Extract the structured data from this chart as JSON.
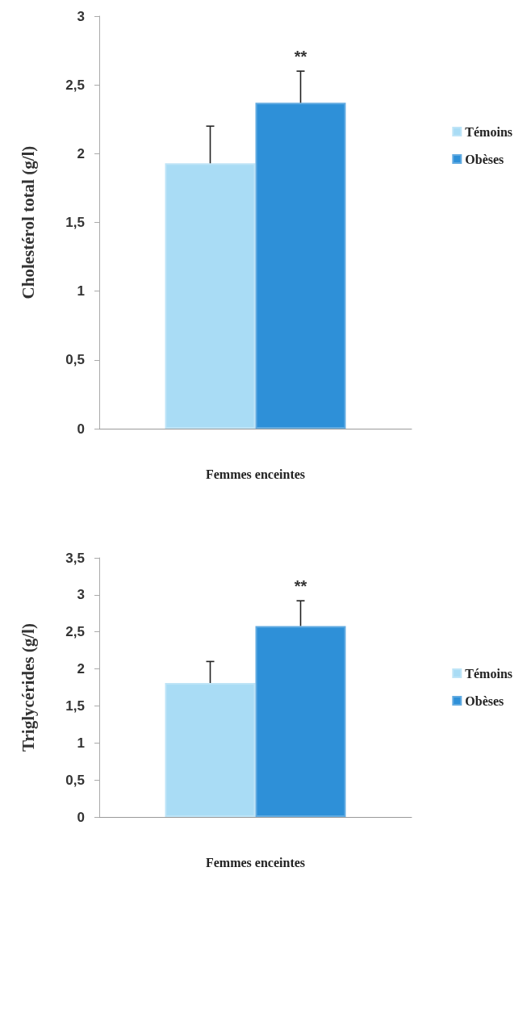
{
  "chart_data": [
    {
      "type": "bar",
      "ylabel": "Cholestérol total (g/l)",
      "xlabel": "Femmes enceintes",
      "categories": [
        null
      ],
      "series": [
        {
          "name": "Témoins",
          "color": "#a9dcf5",
          "values": [
            1.93
          ],
          "errors": [
            [
              1.93,
              2.2
            ]
          ]
        },
        {
          "name": "Obèses",
          "color": "#2e90d8",
          "values": [
            2.37
          ],
          "errors": [
            [
              2.37,
              2.6
            ]
          ]
        }
      ],
      "ylim": [
        0,
        3
      ],
      "yticks": [
        0,
        {
          "value": 0.5,
          "label": "0,5"
        },
        1,
        {
          "value": 1.5,
          "label": "1,5"
        },
        2,
        {
          "value": 2.5,
          "label": "2,5"
        },
        3
      ],
      "annotations": [
        "**"
      ],
      "legend": "right",
      "grid": false
    },
    {
      "type": "bar",
      "ylabel": "Triglycérides (g/l)",
      "xlabel": "Femmes enceintes",
      "categories": [
        null
      ],
      "series": [
        {
          "name": "Témoins",
          "color": "#a9dcf5",
          "values": [
            1.81
          ],
          "errors": [
            [
              1.81,
              2.1
            ]
          ]
        },
        {
          "name": "Obèses",
          "color": "#2e90d8",
          "values": [
            2.58
          ],
          "errors": [
            [
              2.58,
              2.92
            ]
          ]
        }
      ],
      "ylim": [
        0,
        3.5
      ],
      "yticks": [
        0,
        {
          "value": 0.5,
          "label": "0,5"
        },
        1,
        {
          "value": 1.5,
          "label": "1,5"
        },
        2,
        {
          "value": 2.5,
          "label": "2,5"
        },
        3,
        {
          "value": 3.5,
          "label": "3,5"
        }
      ],
      "annotations": [
        "**"
      ],
      "legend": "right",
      "grid": false
    }
  ]
}
